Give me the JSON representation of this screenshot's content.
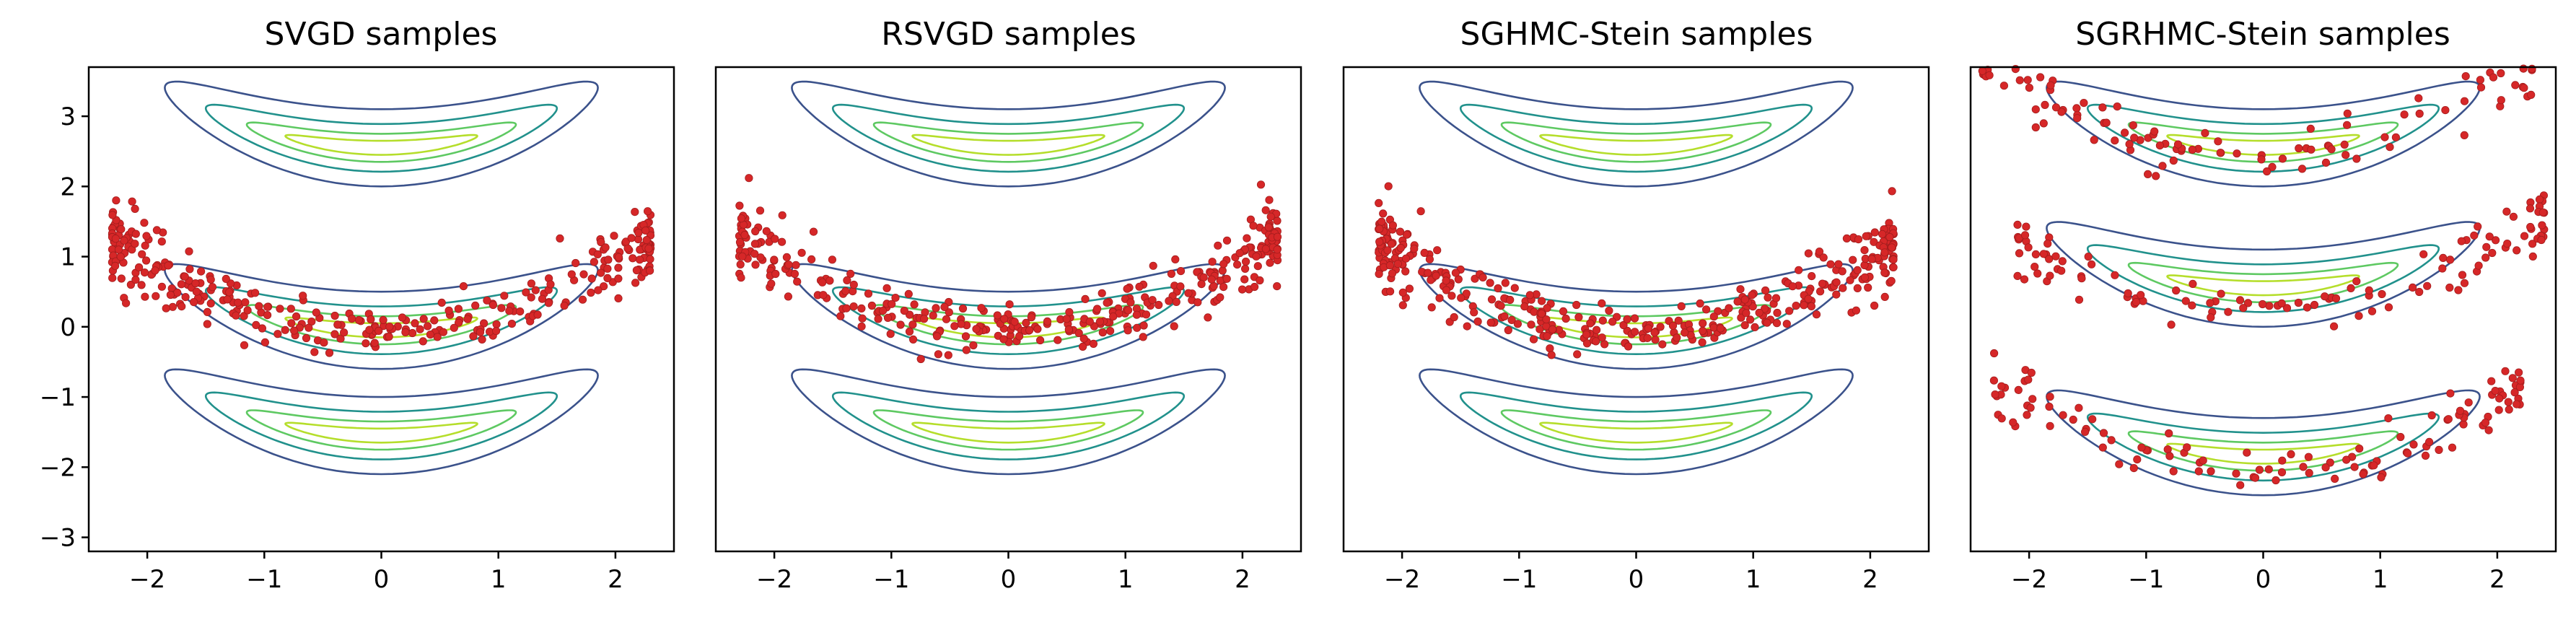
{
  "chart_data": [
    {
      "type": "scatter",
      "title": "SVGD samples",
      "xlabel": "",
      "ylabel": "",
      "xlim": [
        -2.5,
        2.5
      ],
      "ylim": [
        -3.2,
        3.7
      ],
      "xticks": [
        -2,
        -1,
        0,
        1,
        2
      ],
      "xtick_labels": [
        "−2",
        "−1",
        "0",
        "1",
        "2"
      ],
      "yticks": [
        3,
        2,
        1,
        0,
        -1,
        -2,
        -3
      ],
      "ytick_labels": [
        "3",
        "2",
        "1",
        "0",
        "−1",
        "−2",
        "−3"
      ],
      "show_y_ticks": true,
      "contour_centers": [
        2.6,
        0.0,
        -1.5
      ],
      "contour_levels": [
        "outer",
        "middle",
        "inner",
        "core"
      ],
      "samples": {
        "color": "#d62728",
        "count": 340,
        "distribution": "banana around y=0 (parabola y=0.25x^2 centered), wider spread at ends",
        "clusters": [
          {
            "center_y": 0.0,
            "x_range": [
              -2.3,
              2.3
            ]
          }
        ]
      }
    },
    {
      "type": "scatter",
      "title": "RSVGD samples",
      "xlabel": "",
      "ylabel": "",
      "xlim": [
        -2.5,
        2.5
      ],
      "ylim": [
        -3.2,
        3.7
      ],
      "xticks": [
        -2,
        -1,
        0,
        1,
        2
      ],
      "xtick_labels": [
        "−2",
        "−1",
        "0",
        "1",
        "2"
      ],
      "yticks": [],
      "ytick_labels": [],
      "show_y_ticks": false,
      "contour_centers": [
        2.6,
        0.0,
        -1.5
      ],
      "contour_levels": [
        "outer",
        "middle",
        "inner",
        "core"
      ],
      "samples": {
        "color": "#d62728",
        "count": 340,
        "distribution": "banana around y=0, similar to SVGD",
        "clusters": [
          {
            "center_y": 0.0,
            "x_range": [
              -2.3,
              2.3
            ]
          }
        ]
      }
    },
    {
      "type": "scatter",
      "title": "SGHMC-Stein samples",
      "xlabel": "",
      "ylabel": "",
      "xlim": [
        -2.5,
        2.5
      ],
      "ylim": [
        -3.2,
        3.7
      ],
      "xticks": [
        -2,
        -1,
        0,
        1,
        2
      ],
      "xtick_labels": [
        "−2",
        "−1",
        "0",
        "1",
        "2"
      ],
      "yticks": [],
      "ytick_labels": [],
      "show_y_ticks": false,
      "contour_centers": [
        2.6,
        0.0,
        -1.5
      ],
      "contour_levels": [
        "outer",
        "middle",
        "inner",
        "core"
      ],
      "samples": {
        "color": "#d62728",
        "count": 380,
        "distribution": "denser banana around y=0",
        "clusters": [
          {
            "center_y": 0.0,
            "x_range": [
              -2.2,
              2.2
            ]
          }
        ]
      }
    },
    {
      "type": "scatter",
      "title": "SGRHMC-Stein samples",
      "xlabel": "",
      "ylabel": "",
      "xlim": [
        -2.5,
        2.5
      ],
      "ylim": [
        -3.2,
        3.7
      ],
      "xticks": [
        -2,
        -1,
        0,
        1,
        2
      ],
      "xtick_labels": [
        "−2",
        "−1",
        "0",
        "1",
        "2"
      ],
      "yticks": [],
      "ytick_labels": [],
      "show_y_ticks": false,
      "contour_centers": [
        2.6,
        0.6,
        -1.8
      ],
      "contour_levels": [
        "outer",
        "middle",
        "inner",
        "core"
      ],
      "samples": {
        "color": "#d62728",
        "count": 360,
        "distribution": "spread across three banana modes",
        "clusters": [
          {
            "center_y": 2.45,
            "x_range": [
              -2.4,
              2.3
            ]
          },
          {
            "center_y": 0.25,
            "x_range": [
              -2.1,
              2.4
            ]
          },
          {
            "center_y": -2.0,
            "x_range": [
              -2.3,
              2.2
            ]
          }
        ]
      }
    }
  ],
  "colors": {
    "outer": "#3b528b",
    "middle": "#21918c",
    "inner": "#5ec962",
    "core": "#b5de2b",
    "samples": "#d62728",
    "sample_edge": "#a31d1d"
  }
}
